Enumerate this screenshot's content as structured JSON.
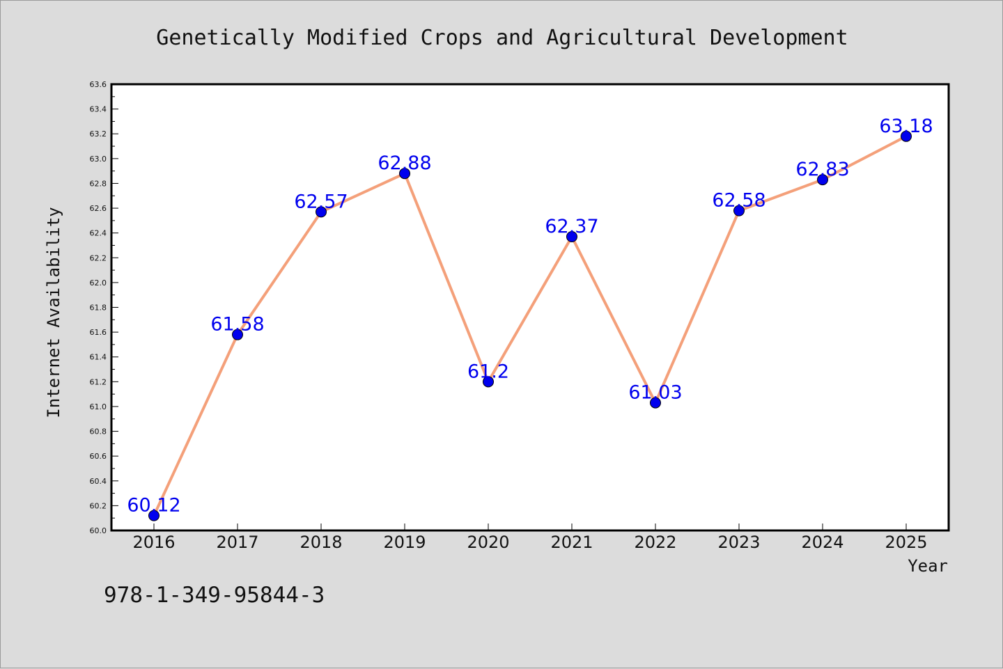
{
  "chart_data": {
    "type": "line",
    "title": "Genetically Modified Crops and Agricultural Development",
    "xlabel": "Year",
    "ylabel": "Internet Availability",
    "categories": [
      "2016",
      "2017",
      "2018",
      "2019",
      "2020",
      "2021",
      "2022",
      "2023",
      "2024",
      "2025"
    ],
    "values": [
      60.12,
      61.58,
      62.57,
      62.88,
      61.2,
      62.37,
      61.03,
      62.58,
      62.83,
      63.18
    ],
    "data_labels": [
      "60.12",
      "61.58",
      "62.57",
      "62.88",
      "61.2",
      "62.37",
      "61.03",
      "62.58",
      "62.83",
      "63.18"
    ],
    "ylim": [
      60.0,
      63.6
    ],
    "yticks": [
      "60.0",
      "60.2",
      "60.4",
      "60.6",
      "60.8",
      "61.0",
      "61.2",
      "61.4",
      "61.6",
      "61.8",
      "62.0",
      "62.2",
      "62.4",
      "62.6",
      "62.8",
      "63.0",
      "63.2",
      "63.4",
      "63.6"
    ],
    "grid": false,
    "legend": "none",
    "colors": {
      "line": "#f4a07a",
      "marker": "#0000ee",
      "label": "#0000ee",
      "background": "#dcdcdc",
      "plot_area": "#ffffff"
    }
  },
  "footer": {
    "isbn": "978-1-349-95844-3"
  }
}
